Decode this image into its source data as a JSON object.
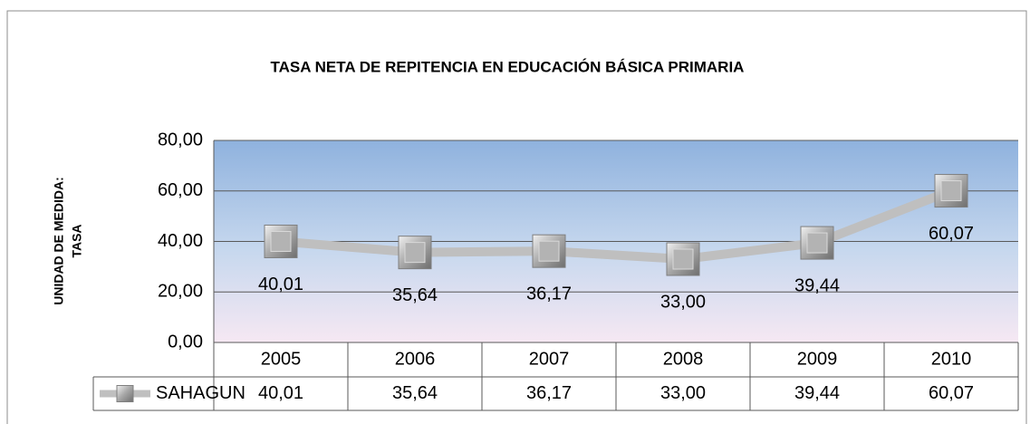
{
  "chart_data": {
    "type": "line",
    "title": "TASA NETA  DE REPITENCIA EN  EDUCACIÓN BÁSICA PRIMARIA",
    "y_label": [
      "UNIDAD DE MEDIDA:",
      "TASA"
    ],
    "categories": [
      "2005",
      "2006",
      "2007",
      "2008",
      "2009",
      "2010"
    ],
    "series": [
      {
        "name": "SAHAGUN",
        "color": "#bfbfbf",
        "values": [
          40.01,
          35.64,
          36.17,
          33.0,
          39.44,
          60.07
        ],
        "value_labels": [
          "40,01",
          "35,64",
          "36,17",
          "33,00",
          "39,44",
          "60,07"
        ]
      }
    ],
    "ylim": [
      0,
      80
    ],
    "yticks": [
      {
        "value": 0,
        "label": "0,00"
      },
      {
        "value": 20,
        "label": "20,00"
      },
      {
        "value": 40,
        "label": "40,00"
      },
      {
        "value": 60,
        "label": "60,00"
      },
      {
        "value": 80,
        "label": "80,00"
      }
    ],
    "grid": true,
    "data_table": true
  }
}
